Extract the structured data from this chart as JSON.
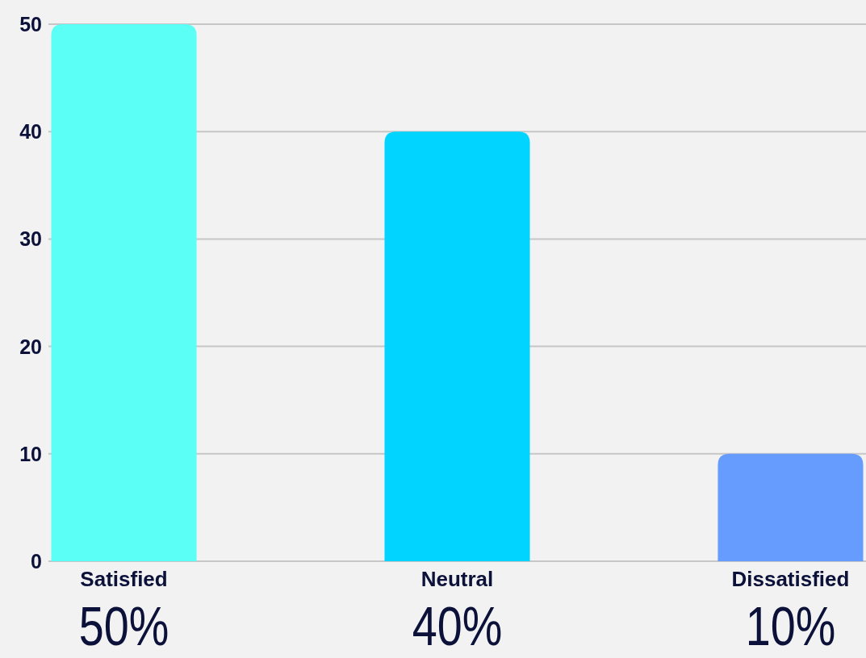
{
  "chart_data": {
    "type": "bar",
    "categories": [
      "Satisfied",
      "Neutral",
      "Dissatisfied"
    ],
    "values": [
      50,
      40,
      10
    ],
    "colors": [
      "#5cfff6",
      "#00d4ff",
      "#679cff"
    ],
    "value_labels": [
      "50%",
      "40%",
      "10%"
    ],
    "ylim": [
      0,
      50
    ],
    "yticks": [
      0,
      10,
      20,
      30,
      40,
      50
    ],
    "grid": "y"
  }
}
